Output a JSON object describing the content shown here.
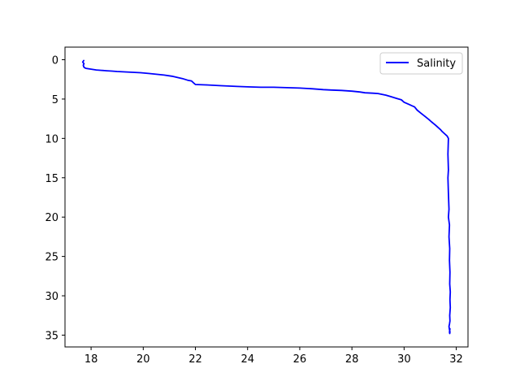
{
  "chart_data": {
    "type": "line",
    "title": "",
    "xlabel": "",
    "ylabel": "",
    "xlim": [
      17.0,
      32.45
    ],
    "ylim": [
      36.5,
      -1.6
    ],
    "y_inverted": true,
    "xticks": [
      18,
      20,
      22,
      24,
      26,
      28,
      30,
      32
    ],
    "yticks": [
      0,
      5,
      10,
      15,
      20,
      25,
      30,
      35
    ],
    "grid": false,
    "legend": {
      "position": "top-right"
    },
    "series": [
      {
        "name": "Salinity",
        "color": "#0000ff",
        "x": [
          17.72,
          17.68,
          17.73,
          17.7,
          17.72,
          17.74,
          17.8,
          17.9,
          18.0,
          18.2,
          18.4,
          18.6,
          18.8,
          19.0,
          19.3,
          19.6,
          19.9,
          20.2,
          20.5,
          20.8,
          21.1,
          21.3,
          21.5,
          21.7,
          21.85,
          21.9,
          21.95,
          22.0,
          22.4,
          23.0,
          23.6,
          24.0,
          24.5,
          25.0,
          25.5,
          26.0,
          26.5,
          26.9,
          27.2,
          27.6,
          28.0,
          28.3,
          28.5,
          28.8,
          29.0,
          29.3,
          29.5,
          29.7,
          29.9,
          30.0,
          30.2,
          30.4,
          30.5,
          30.65,
          30.8,
          30.95,
          31.05,
          31.2,
          31.3,
          31.4,
          31.45,
          31.55,
          31.65,
          31.7,
          31.68,
          31.7,
          31.68,
          31.7,
          31.72,
          31.7,
          31.74,
          31.72,
          31.75,
          31.74,
          31.76,
          31.75,
          31.77,
          31.76,
          31.77,
          31.75,
          31.76,
          31.74,
          31.72,
          31.74,
          31.76,
          31.75,
          31.74,
          31.76
        ],
        "y": [
          0.1,
          0.3,
          0.5,
          0.7,
          0.9,
          1.0,
          1.1,
          1.15,
          1.2,
          1.3,
          1.35,
          1.4,
          1.45,
          1.5,
          1.55,
          1.6,
          1.65,
          1.75,
          1.85,
          1.95,
          2.1,
          2.25,
          2.4,
          2.6,
          2.7,
          2.85,
          3.0,
          3.15,
          3.2,
          3.3,
          3.4,
          3.45,
          3.5,
          3.5,
          3.55,
          3.6,
          3.7,
          3.8,
          3.85,
          3.9,
          4.0,
          4.1,
          4.2,
          4.25,
          4.3,
          4.5,
          4.7,
          4.9,
          5.1,
          5.4,
          5.7,
          6.0,
          6.4,
          6.8,
          7.2,
          7.6,
          7.9,
          8.3,
          8.6,
          8.9,
          9.1,
          9.4,
          9.7,
          10.0,
          12.0,
          14.0,
          15.0,
          17.0,
          19.0,
          20.0,
          21.0,
          22.5,
          24.0,
          25.5,
          27.0,
          28.5,
          29.5,
          30.5,
          31.5,
          32.5,
          33.2,
          33.6,
          33.9,
          34.3,
          34.6,
          34.8,
          34.6,
          34.2
        ]
      }
    ]
  }
}
